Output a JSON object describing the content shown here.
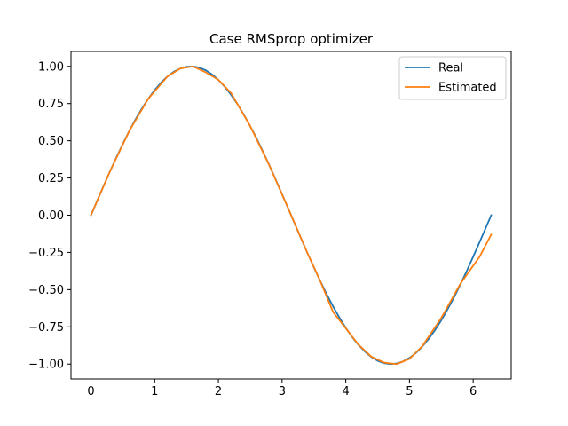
{
  "chart_data": {
    "type": "line",
    "title": "Case RMSprop optimizer",
    "xlabel": "",
    "ylabel": "",
    "xlim": [
      -0.314,
      6.597
    ],
    "ylim": [
      -1.1,
      1.1
    ],
    "x_ticks": [
      0,
      1,
      2,
      3,
      4,
      5,
      6
    ],
    "x_tick_labels": [
      "0",
      "1",
      "2",
      "3",
      "4",
      "5",
      "6"
    ],
    "y_ticks": [
      1.0,
      0.75,
      0.5,
      0.25,
      0.0,
      -0.25,
      -0.5,
      -0.75,
      -1.0
    ],
    "y_tick_labels": [
      "1.00",
      "0.75",
      "0.50",
      "0.25",
      "0.00",
      "−0.25",
      "−0.50",
      "−0.75",
      "−1.00"
    ],
    "grid": false,
    "legend_position": "top-right",
    "series": [
      {
        "name": "Real",
        "color": "#1f77b4",
        "x": [
          0.0,
          0.1,
          0.2,
          0.3,
          0.4,
          0.5,
          0.6,
          0.7,
          0.8,
          0.9,
          1.0,
          1.1,
          1.2,
          1.3,
          1.4,
          1.5,
          1.6,
          1.7,
          1.8,
          1.9,
          2.0,
          2.1,
          2.2,
          2.3,
          2.4,
          2.5,
          2.6,
          2.7,
          2.8,
          2.9,
          3.0,
          3.1,
          3.2,
          3.3,
          3.4,
          3.5,
          3.6,
          3.7,
          3.8,
          3.9,
          4.0,
          4.1,
          4.2,
          4.3,
          4.4,
          4.5,
          4.6,
          4.7,
          4.8,
          4.9,
          5.0,
          5.1,
          5.2,
          5.3,
          5.4,
          5.5,
          5.6,
          5.7,
          5.8,
          5.9,
          6.0,
          6.1,
          6.2,
          6.283
        ],
        "y": [
          0.0,
          0.1,
          0.199,
          0.296,
          0.389,
          0.479,
          0.565,
          0.644,
          0.717,
          0.783,
          0.841,
          0.891,
          0.932,
          0.964,
          0.985,
          0.997,
          1.0,
          0.992,
          0.974,
          0.946,
          0.909,
          0.863,
          0.808,
          0.746,
          0.675,
          0.598,
          0.516,
          0.427,
          0.335,
          0.239,
          0.141,
          0.042,
          -0.058,
          -0.158,
          -0.256,
          -0.351,
          -0.443,
          -0.53,
          -0.612,
          -0.688,
          -0.757,
          -0.818,
          -0.872,
          -0.916,
          -0.952,
          -0.978,
          -0.994,
          -1.0,
          -0.996,
          -0.982,
          -0.959,
          -0.926,
          -0.883,
          -0.832,
          -0.773,
          -0.706,
          -0.631,
          -0.551,
          -0.465,
          -0.374,
          -0.279,
          -0.182,
          -0.083,
          0.0
        ]
      },
      {
        "name": "Estimated",
        "color": "#ff7f0e",
        "x": [
          0.0,
          0.3,
          0.6,
          0.9,
          1.2,
          1.4,
          1.6,
          1.8,
          2.0,
          2.2,
          2.5,
          2.8,
          3.1,
          3.4,
          3.6,
          3.8,
          4.0,
          4.2,
          4.4,
          4.6,
          4.8,
          5.0,
          5.2,
          5.5,
          5.8,
          6.1,
          6.283
        ],
        "y": [
          0.0,
          0.296,
          0.565,
          0.783,
          0.932,
          0.985,
          1.0,
          0.96,
          0.91,
          0.82,
          0.598,
          0.335,
          0.042,
          -0.256,
          -0.443,
          -0.65,
          -0.76,
          -0.87,
          -0.95,
          -0.99,
          -1.0,
          -0.965,
          -0.88,
          -0.69,
          -0.46,
          -0.28,
          -0.13
        ]
      }
    ]
  }
}
